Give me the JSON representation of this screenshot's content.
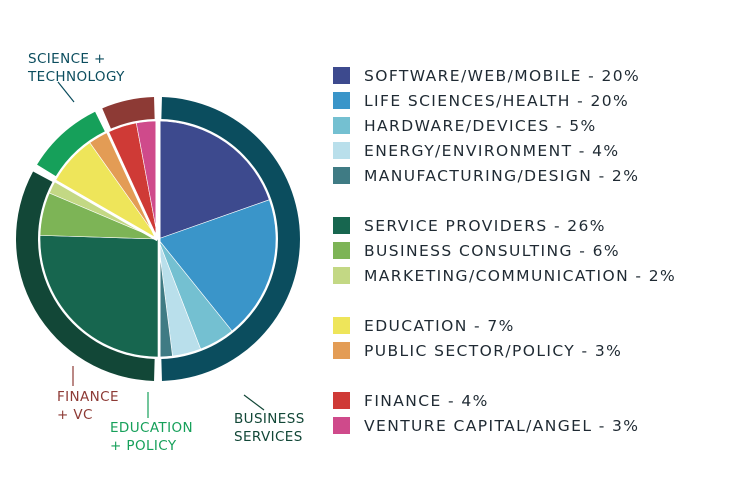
{
  "chart_data": {
    "type": "pie",
    "groups": [
      {
        "name": "SCIENCE +\nTECHNOLOGY",
        "color": "#0b4d5e",
        "slices": [
          {
            "label": "SOFTWARE/WEB/MOBILE",
            "value": 20,
            "color": "#3d4a8e",
            "legend": "SOFTWARE/WEB/MOBILE - 20%"
          },
          {
            "label": "LIFE SCIENCES/HEALTH",
            "value": 20,
            "color": "#3a95c9",
            "legend": "LIFE SCIENCES/HEALTH - 20%"
          },
          {
            "label": "HARDWARE/DEVICES",
            "value": 5,
            "color": "#74c0d1",
            "legend": "HARDWARE/DEVICES - 5%"
          },
          {
            "label": "ENERGY/ENVIRONMENT",
            "value": 4,
            "color": "#b9dfeb",
            "legend": "ENERGY/ENVIRONMENT - 4%"
          },
          {
            "label": "MANUFACTURING/DESIGN",
            "value": 2,
            "color": "#3f7b84",
            "legend": "MANUFACTURING/DESIGN - 2%"
          }
        ]
      },
      {
        "name": "BUSINESS\nSERVICES",
        "color": "#124737",
        "slices": [
          {
            "label": "SERVICE PROVIDERS",
            "value": 26,
            "color": "#17664f",
            "legend": "SERVICE PROVIDERS - 26%"
          },
          {
            "label": "BUSINESS CONSULTING",
            "value": 6,
            "color": "#7db456",
            "legend": "BUSINESS CONSULTING - 6%"
          },
          {
            "label": "MARKETING/COMMUNICATION",
            "value": 2,
            "color": "#c3d884",
            "legend": "MARKETING/COMMUNICATION - 2%"
          }
        ]
      },
      {
        "name": "EDUCATION\n+ POLICY",
        "color": "#16a05a",
        "slices": [
          {
            "label": "EDUCATION",
            "value": 7,
            "color": "#eee55a",
            "legend": "EDUCATION - 7%"
          },
          {
            "label": "PUBLIC SECTOR/POLICY",
            "value": 3,
            "color": "#e39c55",
            "legend": "PUBLIC SECTOR/POLICY - 3%"
          }
        ]
      },
      {
        "name": "FINANCE\n+ VC",
        "color": "#8d3a35",
        "slices": [
          {
            "label": "FINANCE",
            "value": 4,
            "color": "#cf3a36",
            "legend": "FINANCE - 4%"
          },
          {
            "label": "VENTURE CAPITAL/ANGEL",
            "value": 3,
            "color": "#cf4a8b",
            "legend": "VENTURE CAPITAL/ANGEL - 3%"
          }
        ]
      }
    ],
    "group_label_colors": [
      "#0b4d5e",
      "#124737",
      "#16a05a",
      "#8d3a35"
    ]
  }
}
